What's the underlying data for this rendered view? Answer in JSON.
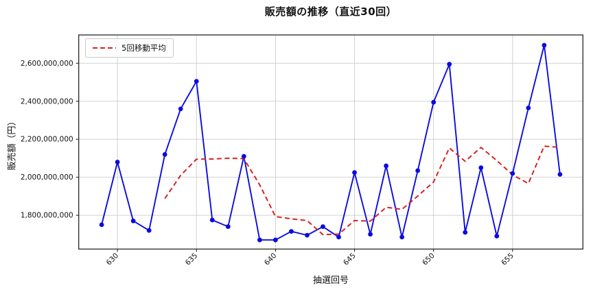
{
  "accent_colors": {
    "sales_line": "#0b0bdf",
    "moving_average_line": "#d62222",
    "grid": "#cccccc",
    "axis_border": "#262626",
    "background": "#ffffff"
  },
  "chart_data": {
    "type": "line",
    "title": "販売額の推移（直近30回）",
    "xlabel": "抽選回号",
    "ylabel": "販売額（円）",
    "legend": {
      "position": "upper-left",
      "entries": [
        "5回移動平均"
      ]
    },
    "grid": true,
    "x": [
      629,
      630,
      631,
      632,
      633,
      634,
      635,
      636,
      637,
      638,
      639,
      640,
      641,
      642,
      643,
      644,
      645,
      646,
      647,
      648,
      649,
      650,
      651,
      652,
      653,
      654,
      655,
      656,
      657,
      658
    ],
    "series": [
      {
        "name": "販売額",
        "style": "solid",
        "marker": "circle",
        "values": [
          1750000000,
          2080000000,
          1770000000,
          1720000000,
          2120000000,
          2360000000,
          2505000000,
          1775000000,
          1740000000,
          2110000000,
          1670000000,
          1670000000,
          1715000000,
          1695000000,
          1740000000,
          1685000000,
          2025000000,
          1700000000,
          2060000000,
          1685000000,
          2035000000,
          2395000000,
          2595000000,
          1710000000,
          2050000000,
          1690000000,
          2020000000,
          2365000000,
          2695000000,
          2015000000
        ]
      },
      {
        "name": "5回移動平均",
        "style": "dashed",
        "marker": "none",
        "values": [
          null,
          null,
          null,
          null,
          1888000000,
          2010000000,
          2095000000,
          2096000000,
          2100000000,
          2098000000,
          1960000000,
          1793000000,
          1781000000,
          1772000000,
          1698000000,
          1701000000,
          1772000000,
          1769000000,
          1842000000,
          1831000000,
          1901000000,
          1975000000,
          2154000000,
          2084000000,
          2157000000,
          2088000000,
          2013000000,
          1967000000,
          2164000000,
          2157000000
        ]
      }
    ],
    "x_ticks": [
      630,
      635,
      640,
      645,
      650,
      655
    ],
    "y_ticks": [
      1800000000,
      2000000000,
      2200000000,
      2400000000,
      2600000000
    ],
    "xlim": [
      627.55,
      659.45
    ],
    "ylim": [
      1622000000,
      2749000000
    ]
  }
}
